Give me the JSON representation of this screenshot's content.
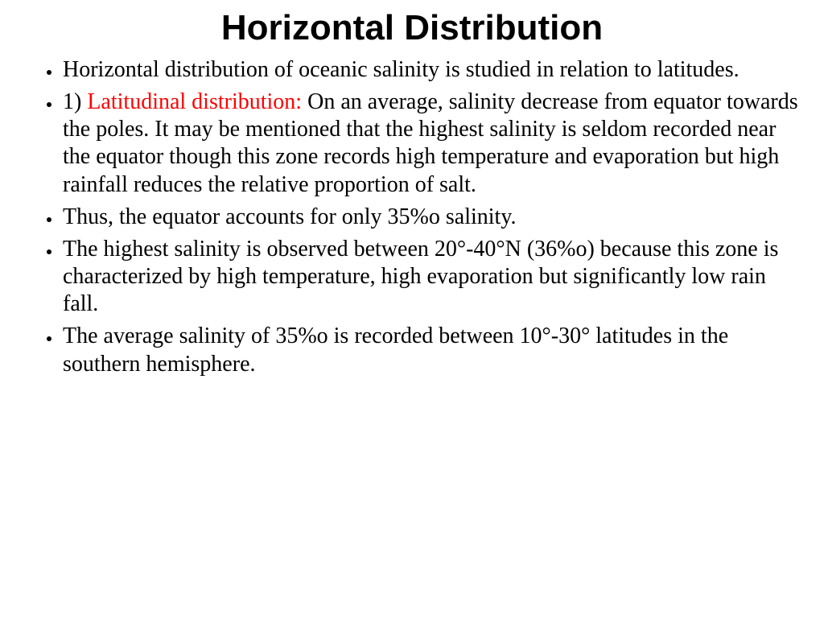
{
  "title": "Horizontal Distribution",
  "bullets": {
    "b1": "Horizontal distribution of oceanic salinity is studied in relation to latitudes.",
    "b2_prefix": "1) ",
    "b2_em": "Latitudinal distribution:",
    "b2_rest": " On an average, salinity decrease from equator towards the poles. It may be mentioned that the highest salinity is seldom recorded near the equator though this zone records high temperature and evaporation but high rainfall reduces the relative proportion of salt.",
    "b3": "Thus, the equator accounts for only 35%o salinity.",
    "b4": "The highest salinity is observed between 20°-40°N (36%o) because this zone is characterized by high temperature, high evaporation but significantly low rain fall.",
    "b5": "The average salinity of 35%o is recorded between 10°-30° latitudes in the southern hemisphere."
  },
  "style": {
    "title_fontsize": 44,
    "body_fontsize": 28,
    "title_font": "Arial Black",
    "body_font": "Georgia",
    "emphasis_color": "#ff0000",
    "text_color": "#000000",
    "background_color": "#ffffff"
  }
}
